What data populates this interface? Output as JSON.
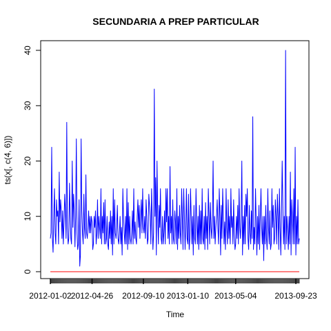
{
  "chart_data": {
    "type": "line",
    "title": "SECUNDARIA A PREP PARTICULAR",
    "xlabel": "Time",
    "ylabel": "ts(x[, c(4, 6)])",
    "ylim": [
      0,
      40
    ],
    "y_ticks": [
      0,
      10,
      20,
      30,
      40
    ],
    "x_tick_labels": [
      "2012-01-02",
      "2012-04-26",
      "2012-09-10",
      "2013-01-10",
      "2013-05-04",
      "2013-09-23"
    ],
    "x_tick_index": [
      0,
      61,
      136,
      201,
      271,
      359
    ],
    "grid": false,
    "series": [
      {
        "color": "#0000ff",
        "values": [
          6,
          7,
          22.5,
          6,
          3.5,
          10,
          15,
          7,
          5,
          13,
          10,
          11,
          5,
          18,
          9,
          13,
          11,
          6,
          11,
          5,
          9,
          14,
          11,
          6,
          27,
          8,
          5,
          6,
          16,
          10,
          6,
          5,
          20,
          8,
          14,
          11,
          4.5,
          10,
          24,
          7,
          4,
          5,
          13,
          1,
          3,
          24,
          11,
          7,
          5,
          14,
          8,
          6,
          17.5,
          7,
          6,
          8,
          11,
          7,
          10,
          7,
          10,
          9,
          4,
          5,
          10,
          8,
          11,
          5,
          7,
          13,
          6,
          10,
          8,
          6,
          15,
          5,
          10,
          7,
          12.5,
          5,
          13,
          5,
          6,
          10,
          5,
          4,
          9,
          6,
          11,
          5,
          10,
          3,
          15,
          5,
          13,
          7,
          6,
          8,
          12,
          6,
          5,
          7,
          10,
          5,
          8,
          3,
          15,
          10,
          7,
          5,
          10,
          5,
          15,
          4,
          12.5,
          5,
          10,
          6,
          5,
          7,
          11,
          5,
          15,
          6,
          9,
          6,
          5,
          10,
          13,
          8,
          12,
          6,
          10,
          13,
          7,
          15,
          8,
          7,
          10,
          6,
          13,
          10,
          5,
          6,
          14,
          12,
          10,
          5,
          15,
          9,
          4,
          7,
          33,
          10,
          17,
          3,
          20,
          10,
          5,
          12,
          8,
          15,
          6,
          5,
          10,
          5,
          7,
          11,
          5,
          15,
          9,
          15,
          6,
          10,
          5,
          19,
          7,
          10,
          5,
          13,
          6,
          5,
          11,
          9,
          5,
          15,
          4,
          10,
          6,
          12,
          7,
          5,
          15,
          10,
          4,
          15,
          10,
          4,
          8,
          15,
          6,
          5,
          14,
          4,
          6,
          15,
          10,
          5,
          10,
          3,
          12,
          6,
          5,
          15,
          9,
          5,
          10,
          4,
          12,
          5,
          11,
          5,
          15,
          6,
          5,
          10,
          4,
          12.5,
          6,
          10,
          4,
          15,
          10,
          5,
          12.5,
          8,
          6,
          10,
          20,
          6,
          10,
          5,
          8,
          10,
          13,
          8,
          5,
          15,
          10,
          3,
          12,
          6,
          15,
          10,
          5,
          9,
          4,
          15,
          8,
          5,
          13,
          6,
          10,
          5,
          15,
          8,
          10,
          5,
          13,
          7,
          4,
          5,
          10,
          6,
          12,
          5,
          15,
          8,
          6,
          10,
          20,
          3,
          10,
          5,
          12,
          5,
          14,
          10,
          15,
          6,
          4,
          12,
          7,
          5,
          11,
          6,
          28,
          4,
          8,
          5,
          15,
          9,
          3,
          10,
          5,
          12,
          4,
          10,
          15,
          8,
          5,
          10,
          2,
          10,
          5,
          12,
          6,
          4,
          15,
          8,
          5,
          11,
          4,
          5,
          15,
          8,
          12,
          5,
          6,
          13,
          10,
          5,
          14,
          10,
          4,
          15,
          8,
          3,
          10,
          20,
          12,
          5,
          10,
          4,
          40,
          5,
          10,
          7,
          4,
          10,
          5,
          18,
          3,
          13,
          10,
          5,
          15,
          5,
          22.5,
          3,
          10,
          5,
          13,
          5,
          6
        ]
      },
      {
        "color": "#ff0000",
        "values": [
          0,
          0
        ]
      }
    ]
  }
}
